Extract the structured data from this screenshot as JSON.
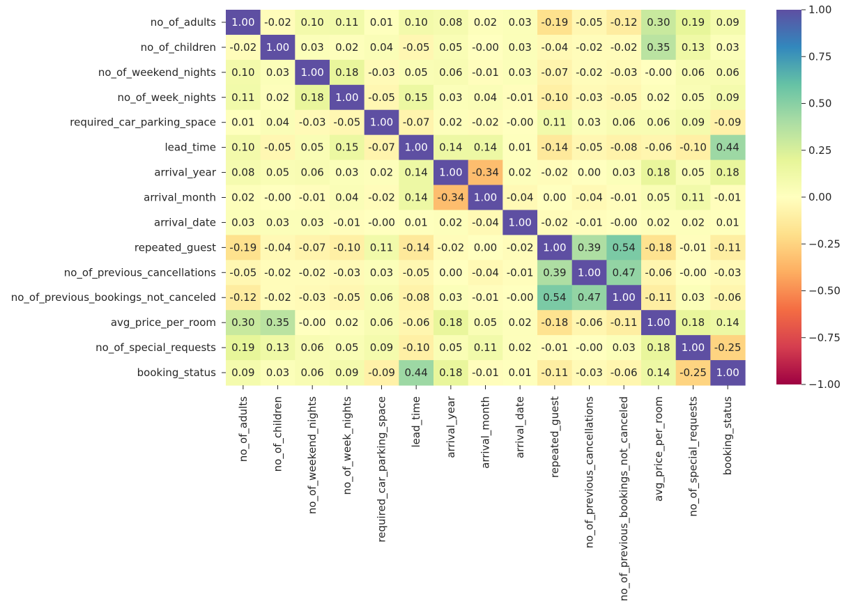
{
  "chart_data": {
    "type": "heatmap",
    "title": "",
    "colormap": "Spectral",
    "vmin": -1,
    "vmax": 1,
    "value_format": "0.00",
    "labels": [
      "no_of_adults",
      "no_of_children",
      "no_of_weekend_nights",
      "no_of_week_nights",
      "required_car_parking_space",
      "lead_time",
      "arrival_year",
      "arrival_month",
      "arrival_date",
      "repeated_guest",
      "no_of_previous_cancellations",
      "no_of_previous_bookings_not_canceled",
      "avg_price_per_room",
      "no_of_special_requests",
      "booking_status"
    ],
    "values": [
      [
        1.0,
        -0.02,
        0.1,
        0.11,
        0.01,
        0.1,
        0.08,
        0.02,
        0.03,
        -0.19,
        -0.05,
        -0.12,
        0.3,
        0.19,
        0.09
      ],
      [
        -0.02,
        1.0,
        0.03,
        0.02,
        0.04,
        -0.05,
        0.05,
        -0.0,
        0.03,
        -0.04,
        -0.02,
        -0.02,
        0.35,
        0.13,
        0.03
      ],
      [
        0.1,
        0.03,
        1.0,
        0.18,
        -0.03,
        0.05,
        0.06,
        -0.01,
        0.03,
        -0.07,
        -0.02,
        -0.03,
        -0.0,
        0.06,
        0.06
      ],
      [
        0.11,
        0.02,
        0.18,
        1.0,
        -0.05,
        0.15,
        0.03,
        0.04,
        -0.01,
        -0.1,
        -0.03,
        -0.05,
        0.02,
        0.05,
        0.09
      ],
      [
        0.01,
        0.04,
        -0.03,
        -0.05,
        1.0,
        -0.07,
        0.02,
        -0.02,
        -0.0,
        0.11,
        0.03,
        0.06,
        0.06,
        0.09,
        -0.09
      ],
      [
        0.1,
        -0.05,
        0.05,
        0.15,
        -0.07,
        1.0,
        0.14,
        0.14,
        0.01,
        -0.14,
        -0.05,
        -0.08,
        -0.06,
        -0.1,
        0.44
      ],
      [
        0.08,
        0.05,
        0.06,
        0.03,
        0.02,
        0.14,
        1.0,
        -0.34,
        0.02,
        -0.02,
        0.0,
        0.03,
        0.18,
        0.05,
        0.18
      ],
      [
        0.02,
        -0.0,
        -0.01,
        0.04,
        -0.02,
        0.14,
        -0.34,
        1.0,
        -0.04,
        0.0,
        -0.04,
        -0.01,
        0.05,
        0.11,
        -0.01
      ],
      [
        0.03,
        0.03,
        0.03,
        -0.01,
        -0.0,
        0.01,
        0.02,
        -0.04,
        1.0,
        -0.02,
        -0.01,
        -0.0,
        0.02,
        0.02,
        0.01
      ],
      [
        -0.19,
        -0.04,
        -0.07,
        -0.1,
        0.11,
        -0.14,
        -0.02,
        0.0,
        -0.02,
        1.0,
        0.39,
        0.54,
        -0.18,
        -0.01,
        -0.11
      ],
      [
        -0.05,
        -0.02,
        -0.02,
        -0.03,
        0.03,
        -0.05,
        0.0,
        -0.04,
        -0.01,
        0.39,
        1.0,
        0.47,
        -0.06,
        -0.0,
        -0.03
      ],
      [
        -0.12,
        -0.02,
        -0.03,
        -0.05,
        0.06,
        -0.08,
        0.03,
        -0.01,
        -0.0,
        0.54,
        0.47,
        1.0,
        -0.11,
        0.03,
        -0.06
      ],
      [
        0.3,
        0.35,
        -0.0,
        0.02,
        0.06,
        -0.06,
        0.18,
        0.05,
        0.02,
        -0.18,
        -0.06,
        -0.11,
        1.0,
        0.18,
        0.14
      ],
      [
        0.19,
        0.13,
        0.06,
        0.05,
        0.09,
        -0.1,
        0.05,
        0.11,
        0.02,
        -0.01,
        -0.0,
        0.03,
        0.18,
        1.0,
        -0.25
      ],
      [
        0.09,
        0.03,
        0.06,
        0.09,
        -0.09,
        0.44,
        0.18,
        -0.01,
        0.01,
        -0.11,
        -0.03,
        -0.06,
        0.14,
        -0.25,
        1.0
      ]
    ],
    "value_labels": [
      [
        "1.00",
        "-0.02",
        "0.10",
        "0.11",
        "0.01",
        "0.10",
        "0.08",
        "0.02",
        "0.03",
        "-0.19",
        "-0.05",
        "-0.12",
        "0.30",
        "0.19",
        "0.09"
      ],
      [
        "-0.02",
        "1.00",
        "0.03",
        "0.02",
        "0.04",
        "-0.05",
        "0.05",
        "-0.00",
        "0.03",
        "-0.04",
        "-0.02",
        "-0.02",
        "0.35",
        "0.13",
        "0.03"
      ],
      [
        "0.10",
        "0.03",
        "1.00",
        "0.18",
        "-0.03",
        "0.05",
        "0.06",
        "-0.01",
        "0.03",
        "-0.07",
        "-0.02",
        "-0.03",
        "-0.00",
        "0.06",
        "0.06"
      ],
      [
        "0.11",
        "0.02",
        "0.18",
        "1.00",
        "-0.05",
        "0.15",
        "0.03",
        "0.04",
        "-0.01",
        "-0.10",
        "-0.03",
        "-0.05",
        "0.02",
        "0.05",
        "0.09"
      ],
      [
        "0.01",
        "0.04",
        "-0.03",
        "-0.05",
        "1.00",
        "-0.07",
        "0.02",
        "-0.02",
        "-0.00",
        "0.11",
        "0.03",
        "0.06",
        "0.06",
        "0.09",
        "-0.09"
      ],
      [
        "0.10",
        "-0.05",
        "0.05",
        "0.15",
        "-0.07",
        "1.00",
        "0.14",
        "0.14",
        "0.01",
        "-0.14",
        "-0.05",
        "-0.08",
        "-0.06",
        "-0.10",
        "0.44"
      ],
      [
        "0.08",
        "0.05",
        "0.06",
        "0.03",
        "0.02",
        "0.14",
        "1.00",
        "-0.34",
        "0.02",
        "-0.02",
        "0.00",
        "0.03",
        "0.18",
        "0.05",
        "0.18"
      ],
      [
        "0.02",
        "-0.00",
        "-0.01",
        "0.04",
        "-0.02",
        "0.14",
        "-0.34",
        "1.00",
        "-0.04",
        "0.00",
        "-0.04",
        "-0.01",
        "0.05",
        "0.11",
        "-0.01"
      ],
      [
        "0.03",
        "0.03",
        "0.03",
        "-0.01",
        "-0.00",
        "0.01",
        "0.02",
        "-0.04",
        "1.00",
        "-0.02",
        "-0.01",
        "-0.00",
        "0.02",
        "0.02",
        "0.01"
      ],
      [
        "-0.19",
        "-0.04",
        "-0.07",
        "-0.10",
        "0.11",
        "-0.14",
        "-0.02",
        "0.00",
        "-0.02",
        "1.00",
        "0.39",
        "0.54",
        "-0.18",
        "-0.01",
        "-0.11"
      ],
      [
        "-0.05",
        "-0.02",
        "-0.02",
        "-0.03",
        "0.03",
        "-0.05",
        "0.00",
        "-0.04",
        "-0.01",
        "0.39",
        "1.00",
        "0.47",
        "-0.06",
        "-0.00",
        "-0.03"
      ],
      [
        "-0.12",
        "-0.02",
        "-0.03",
        "-0.05",
        "0.06",
        "-0.08",
        "0.03",
        "-0.01",
        "-0.00",
        "0.54",
        "0.47",
        "1.00",
        "-0.11",
        "0.03",
        "-0.06"
      ],
      [
        "0.30",
        "0.35",
        "-0.00",
        "0.02",
        "0.06",
        "-0.06",
        "0.18",
        "0.05",
        "0.02",
        "-0.18",
        "-0.06",
        "-0.11",
        "1.00",
        "0.18",
        "0.14"
      ],
      [
        "0.19",
        "0.13",
        "0.06",
        "0.05",
        "0.09",
        "-0.10",
        "0.05",
        "0.11",
        "0.02",
        "-0.01",
        "-0.00",
        "0.03",
        "0.18",
        "1.00",
        "-0.25"
      ],
      [
        "0.09",
        "0.03",
        "0.06",
        "0.09",
        "-0.09",
        "0.44",
        "0.18",
        "-0.01",
        "0.01",
        "-0.11",
        "-0.03",
        "-0.06",
        "0.14",
        "-0.25",
        "1.00"
      ]
    ],
    "colorbar": {
      "ticks": [
        1.0,
        0.75,
        0.5,
        0.25,
        0.0,
        -0.25,
        -0.5,
        -0.75,
        -1.0
      ],
      "tick_labels": [
        "1.00",
        "0.75",
        "0.50",
        "0.25",
        "0.00",
        "−0.25",
        "−0.50",
        "−0.75",
        "−1.00"
      ]
    }
  }
}
